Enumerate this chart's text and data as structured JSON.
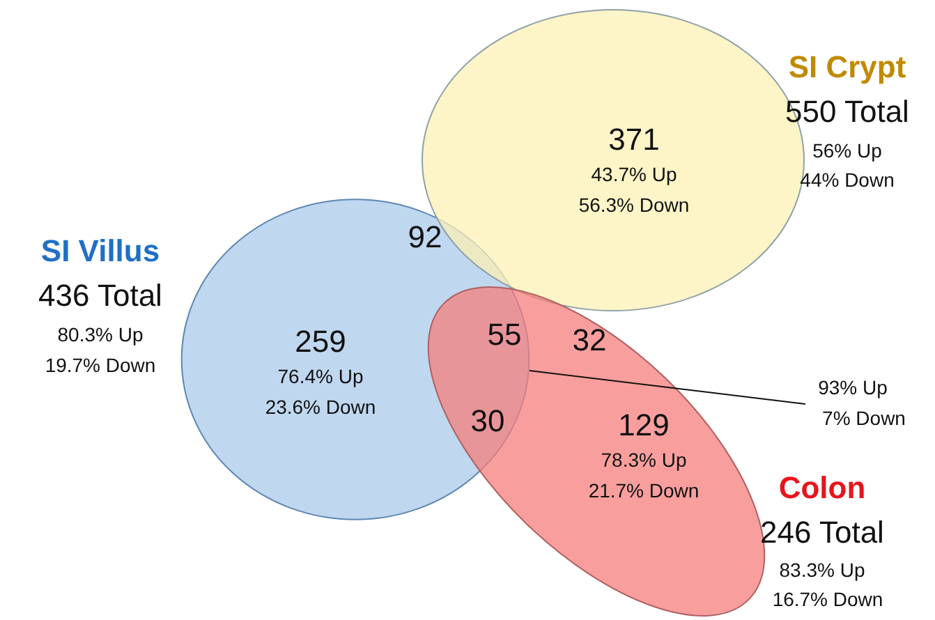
{
  "chart_data": {
    "type": "other",
    "categories": [
      "SI Villus",
      "SI Crypt",
      "Colon"
    ],
    "values": [
      436,
      550,
      246
    ],
    "value_labels": [
      "436 Total",
      "550 Total",
      "246 Total"
    ],
    "colors": [
      "#1f6fc5",
      "#c08a00",
      "#e8141c"
    ],
    "annotations": [
      "80.3% Up",
      "19.7% Down",
      "56% Up",
      "44% Down",
      "83.3% Up",
      "16.7% Down",
      "259",
      "76.4% Up",
      "23.6% Down",
      "92",
      "371",
      "43.7% Up",
      "56.3% Down",
      "55",
      "32",
      "30",
      "129",
      "78.3% Up",
      "21.7% Down",
      "93% Up",
      "7% Down"
    ]
  }
}
